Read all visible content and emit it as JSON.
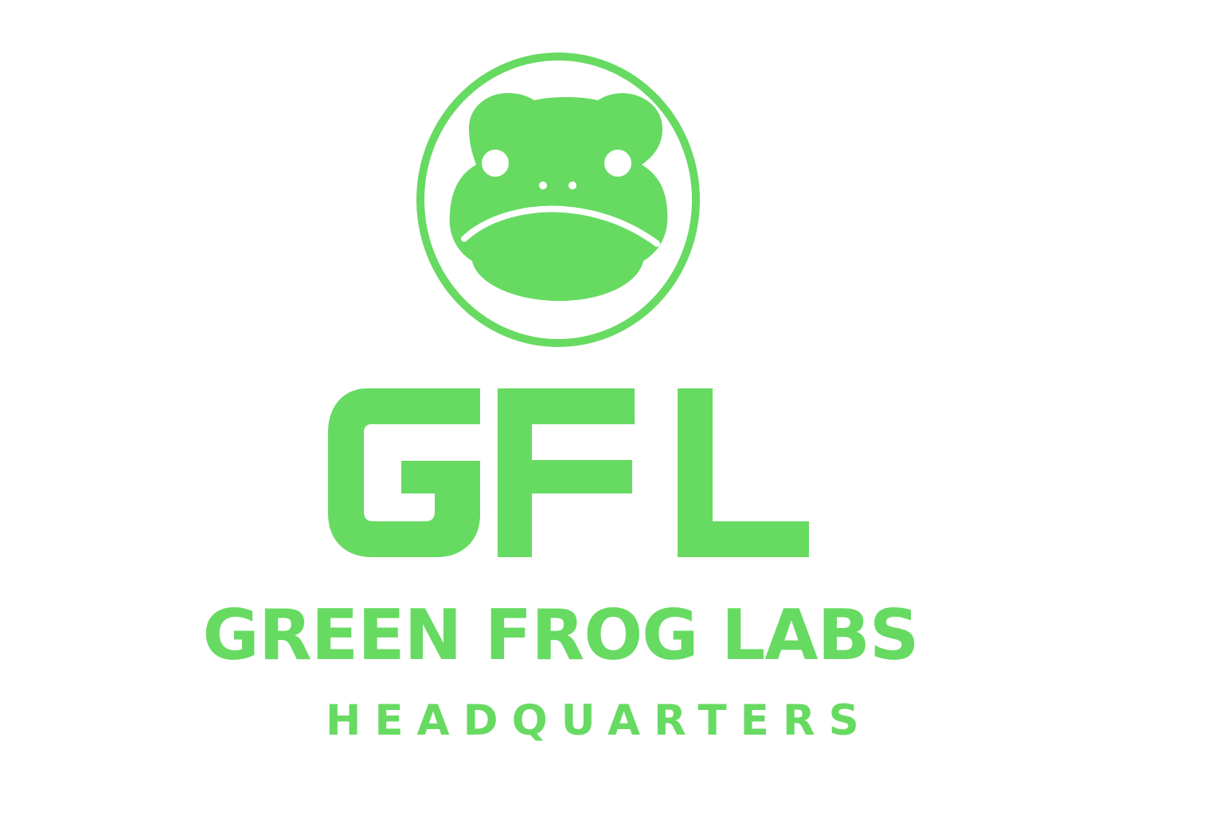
{
  "logo": {
    "monogram": "GFL",
    "company_name": "GREEN FROG LABS",
    "tagline": "HEADQUARTERS",
    "brand_color": "#67da62",
    "background_color": "#ffffff",
    "emblem_icon": "frog-face-in-circle-icon"
  }
}
